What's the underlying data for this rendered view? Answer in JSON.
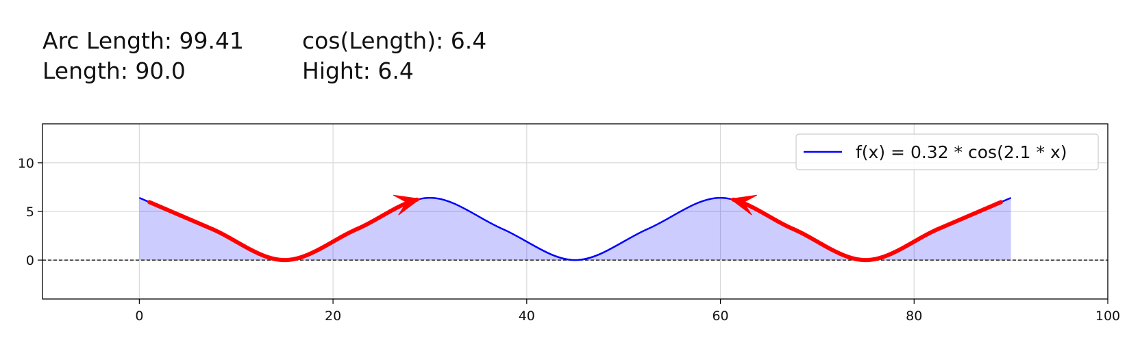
{
  "info": {
    "arc_length_text": "Arc Length: 99.41",
    "length_text": "Length: 90.0",
    "cos_length_text": "cos(Length): 6.4",
    "height_text": "Hight: 6.4"
  },
  "chart_data": {
    "type": "line",
    "title": "",
    "xlabel": "",
    "ylabel": "",
    "xlim": [
      -10,
      100
    ],
    "ylim": [
      -4,
      14
    ],
    "x_ticks": [
      0,
      20,
      40,
      60,
      80,
      100
    ],
    "y_ticks": [
      0,
      5,
      10
    ],
    "grid": true,
    "legend_position": "top-right",
    "series": [
      {
        "name": "f(x) = 0.32 * cos(2.1 * x)",
        "color": "#0000ff",
        "fill_color": "#0000ff",
        "fill_opacity": 0.2,
        "x_range": [
          0,
          90
        ],
        "x": [
          0,
          7.5,
          15,
          22.5,
          30,
          37.5,
          45,
          52.5,
          60,
          67.5,
          75,
          82.5,
          90
        ],
        "y": [
          6.4,
          3.2,
          0.0,
          3.2,
          6.4,
          3.2,
          0.0,
          3.2,
          6.4,
          3.2,
          0.0,
          3.2,
          6.4
        ]
      }
    ],
    "reference_lines": [
      {
        "y": 0,
        "style": "dashed",
        "color": "#000000"
      }
    ],
    "annotations": [
      {
        "type": "arrow",
        "color": "#ff0000",
        "x_from": 1,
        "x_to": 29,
        "head": "end"
      },
      {
        "type": "arrow",
        "color": "#ff0000",
        "x_from": 89,
        "x_to": 61,
        "head": "end"
      }
    ]
  }
}
